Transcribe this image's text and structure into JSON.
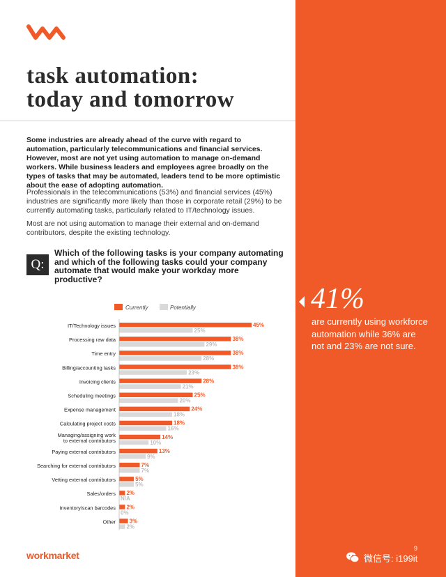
{
  "brand": {
    "wordmark": "workmarket",
    "accent": "#f05a28",
    "potential_color": "#d9d9d9"
  },
  "page": {
    "title_line1": "task automation:",
    "title_line2": "today and tomorrow",
    "intro": "Some industries are already ahead of the curve with regard to automation, particularly telecommunications and financial services. However, most are not yet using automation to manage on-demand workers. While business leaders and employees agree broadly on the types of tasks that may be automated, leaders tend to be more optimistic about the ease of adopting automation.",
    "para1": "Professionals in the telecommunications (53%) and financial services (45%) industries are significantly more likely than those in corporate retail (29%) to be currently automating tasks, particularly related to IT/technology issues.",
    "para2": "Most are not using automation to manage their external and on-demand contributors, despite the existing technology.",
    "q_label": "Q:",
    "question": "Which of the following tasks is your company automating and which of the following tasks could your company automate that would make your workday more productive?",
    "page_number": "9"
  },
  "sidebar": {
    "stat_number": "41%",
    "stat_text": "are currently using workforce automation while 36% are not and 23% are not sure.",
    "watermark": "微信号: i199it"
  },
  "chart_data": {
    "type": "bar",
    "orientation": "horizontal",
    "legend_position": "top",
    "categories": [
      "IT/Technology issues",
      "Processing raw data",
      "Time entry",
      "Billing/accounting tasks",
      "Invoicing clients",
      "Scheduling meetings",
      "Expense management",
      "Calculating project costs",
      "Managing/assigning work\nto external contributors",
      "Paying external contributors",
      "Searching for external contributors",
      "Vetting external contributors",
      "Sales/orders",
      "Inventory/scan barcodes",
      "Other"
    ],
    "series": [
      {
        "name": "Currently",
        "color": "#f05a28",
        "values": [
          45,
          38,
          38,
          38,
          28,
          25,
          24,
          18,
          14,
          13,
          7,
          5,
          2,
          2,
          3
        ],
        "labels": [
          "45%",
          "38%",
          "38%",
          "38%",
          "28%",
          "25%",
          "24%",
          "18%",
          "14%",
          "13%",
          "7%",
          "5%",
          "2%",
          "2%",
          "3%"
        ]
      },
      {
        "name": "Potentially",
        "color": "#d9d9d9",
        "values": [
          25,
          29,
          28,
          23,
          21,
          20,
          18,
          16,
          10,
          9,
          7,
          5,
          null,
          0,
          2
        ],
        "labels": [
          "25%",
          "29%",
          "28%",
          "23%",
          "21%",
          "20%",
          "18%",
          "16%",
          "10%",
          "9%",
          "7%",
          "5%",
          "N/A",
          "0%",
          "2%"
        ]
      }
    ]
  }
}
